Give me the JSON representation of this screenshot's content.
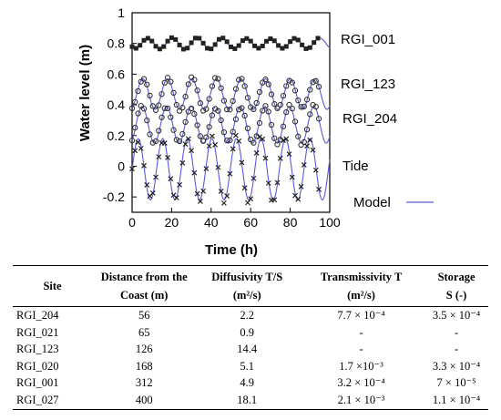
{
  "chart_data": {
    "type": "line",
    "xlabel": "Time (h)",
    "ylabel": "Water level (m)",
    "xlim": [
      0,
      100
    ],
    "ylim": [
      -0.3,
      1.0
    ],
    "xticks": [
      "0",
      "20",
      "40",
      "60",
      "80",
      "100"
    ],
    "yticks": [
      "-0.2",
      "0",
      "0.2",
      "0.4",
      "0.6",
      "0.8",
      "1"
    ],
    "legend_label": "Model",
    "model_color": "#5a5ad8",
    "series": [
      {
        "name": "RGI_001",
        "marker": "square",
        "mean": 0.8,
        "amp": 0.035,
        "phase": 2.5,
        "obs_x": [
          0,
          2,
          4,
          6,
          8,
          10,
          12,
          14,
          16,
          18,
          20,
          22,
          24,
          26,
          28,
          30,
          32,
          34,
          36,
          38,
          40,
          42,
          44,
          46,
          48,
          50,
          52,
          54,
          56,
          58,
          60,
          62,
          64,
          66,
          68,
          70,
          72,
          74,
          76,
          78,
          80,
          82,
          84,
          86,
          88,
          90,
          92,
          94
        ]
      },
      {
        "name": "RGI_123",
        "marker": "circle",
        "mean": 0.47,
        "amp": 0.1,
        "phase": 1.2,
        "obs_x": [
          0,
          1.5,
          3,
          4.5,
          6,
          7.5,
          9,
          10.5,
          12,
          13.5,
          15,
          16.5,
          18,
          19.5,
          21,
          22.5,
          24,
          25.5,
          27,
          28.5,
          30,
          31.5,
          33,
          34.5,
          36,
          37.5,
          39,
          40.5,
          42,
          43.5,
          45,
          46.5,
          48,
          49.5,
          51,
          52.5,
          54,
          55.5,
          57,
          58.5,
          60,
          61.5,
          63,
          64.5,
          66,
          67.5,
          69,
          70.5,
          72,
          73.5,
          75,
          76.5,
          78,
          79.5,
          81,
          82.5,
          84,
          85.5,
          87,
          88.5,
          90,
          91.5,
          93,
          94.5
        ]
      },
      {
        "name": "RGI_204",
        "marker": "circle",
        "mean": 0.27,
        "amp": 0.12,
        "phase": 1.0,
        "obs_x": [
          0,
          1.5,
          3,
          4.5,
          6,
          7.5,
          9,
          10.5,
          12,
          13.5,
          15,
          16.5,
          18,
          19.5,
          21,
          22.5,
          24,
          25.5,
          27,
          28.5,
          30,
          31.5,
          33,
          34.5,
          36,
          37.5,
          39,
          40.5,
          42,
          43.5,
          45,
          46.5,
          48,
          49.5,
          51,
          52.5,
          54,
          55.5,
          57,
          58.5,
          60,
          61.5,
          63,
          64.5,
          66,
          67.5,
          69,
          70.5,
          72,
          73.5,
          75,
          76.5,
          78,
          79.5,
          81,
          82.5,
          84,
          85.5,
          87,
          88.5,
          90,
          91.5,
          93,
          94.5
        ]
      },
      {
        "name": "Tide",
        "marker": "cross",
        "mean": -0.02,
        "amp": 0.2,
        "phase": 0.0,
        "obs_x": [
          0,
          1.5,
          3,
          4.5,
          6,
          7.5,
          9,
          10.5,
          12,
          13.5,
          15,
          16.5,
          18,
          19.5,
          21,
          22.5,
          24,
          25.5,
          27,
          28.5,
          30,
          31.5,
          33,
          34.5,
          36,
          37.5,
          39,
          40.5,
          42,
          43.5,
          45,
          46.5,
          48,
          49.5,
          51,
          52.5,
          54,
          55.5,
          57,
          58.5,
          60,
          61.5,
          63,
          64.5,
          66,
          67.5,
          69,
          70.5,
          72,
          73.5,
          75,
          76.5,
          78,
          79.5,
          81,
          82.5,
          84,
          85.5,
          87,
          88.5,
          90,
          91.5,
          93,
          94.5
        ]
      }
    ],
    "period_h": 12.42
  },
  "table": {
    "headers": {
      "site": "Site",
      "distance_1": "Distance from the",
      "distance_2": "Coast (m)",
      "diffusivity_1": "Diffusivity T/S",
      "diffusivity_2": "(m²/s)",
      "transmissivity_1": "Transmissivity T",
      "transmissivity_2": "(m²/s)",
      "storage_1": "Storage",
      "storage_2": "S (-)"
    },
    "rows": [
      {
        "site": "RGI_204",
        "distance": "56",
        "diffusivity": "2.2",
        "transmissivity": "7.7 × 10⁻⁴",
        "storage": "3.5 × 10⁻⁴"
      },
      {
        "site": "RGI_021",
        "distance": "65",
        "diffusivity": "0.9",
        "transmissivity": "-",
        "storage": "-"
      },
      {
        "site": "RGI_123",
        "distance": "126",
        "diffusivity": "14.4",
        "transmissivity": "-",
        "storage": "-"
      },
      {
        "site": "RGI_020",
        "distance": "168",
        "diffusivity": "5.1",
        "transmissivity": "1.7 ×10⁻³",
        "storage": "3.3 × 10⁻⁴"
      },
      {
        "site": "RGI_001",
        "distance": "312",
        "diffusivity": "4.9",
        "transmissivity": "3.2 × 10⁻⁴",
        "storage": "7 × 10⁻⁵"
      },
      {
        "site": "RGI_027",
        "distance": "400",
        "diffusivity": "18.1",
        "transmissivity": "2.1 × 10⁻³",
        "storage": "1.1 × 10⁻⁴"
      }
    ]
  }
}
